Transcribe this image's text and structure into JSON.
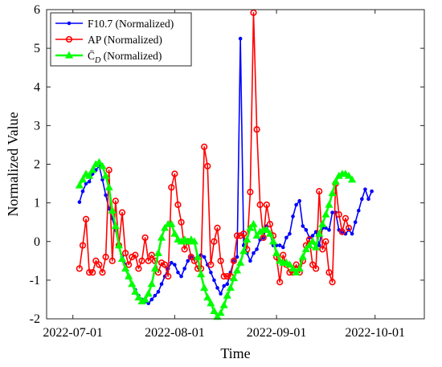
{
  "chart_data": {
    "type": "line",
    "xlabel": "Time",
    "ylabel": "Normalized Value",
    "x_tick_labels": [
      "2022-07-01",
      "2022-08-01",
      "2022-09-01",
      "2022-10-01"
    ],
    "x_tick_values": [
      "2022-07-01",
      "2022-08-01",
      "2022-09-01",
      "2022-10-01"
    ],
    "xlim": [
      "2022-06-23",
      "2022-10-16"
    ],
    "ylim": [
      -2,
      6
    ],
    "y_tick_values": [
      -2,
      -1,
      0,
      1,
      2,
      3,
      4,
      5,
      6
    ],
    "y_tick_labels": [
      "-2",
      "-1",
      "0",
      "1",
      "2",
      "3",
      "4",
      "5",
      "6"
    ],
    "legend_position": "top-left",
    "grid": false,
    "series": [
      {
        "name": "F10.7 (Normalized)",
        "legend_label_main": "F10.7",
        "legend_label_suffix": " (Normalized)",
        "color": "#0000ff",
        "marker": "dot",
        "x_start": "2022-07-03",
        "values": [
          1.02,
          1.3,
          1.5,
          1.55,
          1.75,
          1.85,
          1.95,
          1.6,
          1.2,
          0.85,
          0.6,
          0.3,
          -0.1,
          -0.4,
          -0.6,
          -0.9,
          -1.1,
          -1.25,
          -1.4,
          -1.5,
          -1.55,
          -1.6,
          -1.5,
          -1.4,
          -1.3,
          -1.1,
          -0.9,
          -0.7,
          -0.55,
          -0.6,
          -0.8,
          -0.9,
          -0.7,
          -0.5,
          -0.4,
          -0.45,
          -0.4,
          -0.35,
          -0.4,
          -0.6,
          -0.8,
          -1.0,
          -1.2,
          -1.35,
          -1.15,
          -1.1,
          -0.8,
          -0.5,
          -0.4,
          5.25,
          -0.1,
          -0.3,
          -0.5,
          -0.3,
          -0.2,
          0.05,
          0.1,
          0.4,
          0.2,
          -0.1,
          -0.1,
          -0.1,
          -0.15,
          0.1,
          0.2,
          0.65,
          0.95,
          1.05,
          0.4,
          0.3,
          0.1,
          0.15,
          0.25,
          -0.1,
          0.35,
          0.35,
          0.3,
          0.75,
          0.75,
          0.3,
          0.25,
          0.2,
          0.3,
          0.2,
          0.5,
          0.8,
          1.1,
          1.35,
          1.1,
          1.3
        ]
      },
      {
        "name": "AP (Normalized)",
        "legend_label_main": "AP",
        "legend_label_suffix": " (Normalized)",
        "color": "#ff0000",
        "marker": "circle",
        "x_start": "2022-07-03",
        "values": [
          -0.7,
          -0.1,
          0.58,
          -0.8,
          -0.8,
          -0.5,
          -0.6,
          -0.8,
          -0.4,
          1.85,
          -0.5,
          1.05,
          -0.1,
          0.75,
          -0.3,
          -0.6,
          -0.4,
          -0.35,
          -0.7,
          -0.5,
          0.1,
          -0.5,
          -0.35,
          -0.5,
          -0.8,
          -0.55,
          -0.6,
          -0.9,
          1.4,
          1.75,
          0.95,
          0.5,
          -0.2,
          0.0,
          -0.4,
          -0.5,
          -0.7,
          -0.7,
          2.45,
          1.95,
          -0.6,
          0.0,
          0.35,
          -0.5,
          -0.9,
          -0.9,
          -0.9,
          -0.5,
          0.15,
          0.15,
          0.2,
          -0.2,
          1.28,
          5.92,
          2.9,
          0.95,
          0.1,
          0.95,
          0.45,
          0.15,
          -0.4,
          -1.05,
          -0.35,
          -0.6,
          -0.8,
          -0.8,
          -0.6,
          -0.8,
          -0.5,
          -0.1,
          0.05,
          -0.6,
          -0.7,
          1.3,
          -0.2,
          0.0,
          -0.8,
          -1.05,
          1.5,
          0.7,
          0.25,
          0.6,
          0.35
        ]
      },
      {
        "name": "C̄D (Normalized)",
        "legend_label_main": "C̄",
        "legend_label_sub": "D",
        "legend_label_suffix": " (Normalized)",
        "color": "#00ff00",
        "marker": "triangle",
        "x_start": "2022-07-03",
        "values": [
          1.45,
          1.6,
          1.75,
          1.7,
          1.85,
          2.0,
          2.05,
          1.95,
          1.7,
          1.4,
          0.8,
          0.4,
          -0.1,
          -0.45,
          -0.7,
          -0.9,
          -1.1,
          -1.3,
          -1.45,
          -1.55,
          -1.5,
          -1.35,
          -1.1,
          -0.7,
          -0.3,
          0.1,
          0.35,
          0.45,
          0.45,
          0.2,
          0.05,
          0.0,
          0.05,
          0.0,
          0.05,
          0.0,
          -0.4,
          -0.85,
          -1.2,
          -1.45,
          -1.6,
          -1.8,
          -1.95,
          -1.85,
          -1.65,
          -1.4,
          -1.2,
          -0.95,
          -0.75,
          -0.55,
          -0.25,
          0.05,
          0.35,
          0.45,
          0.15,
          0.25,
          0.3,
          0.3,
          0.2,
          0.0,
          -0.3,
          -0.5,
          -0.55,
          -0.55,
          -0.6,
          -0.7,
          -0.8,
          -0.7,
          -0.4,
          -0.2,
          -0.1,
          0.0,
          -0.15,
          0.2,
          0.45,
          0.7,
          0.95,
          1.25,
          1.55,
          1.7,
          1.75,
          1.75,
          1.7,
          1.6
        ]
      }
    ]
  }
}
